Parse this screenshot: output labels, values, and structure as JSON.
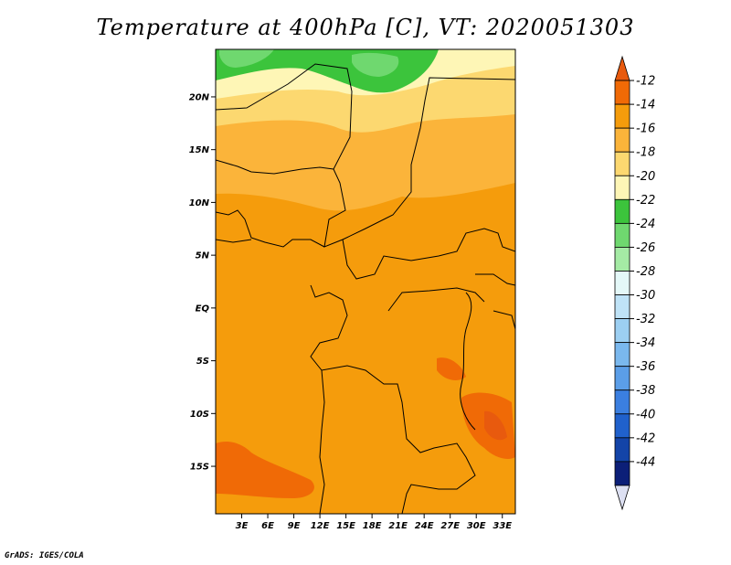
{
  "title": "Temperature at 400hPa [C], VT: 2020051303",
  "credit": "GrADS: IGES/COLA",
  "map": {
    "lat_range": [
      -19.5,
      24.5
    ],
    "lon_range": [
      0,
      34.5
    ],
    "lat_ticks": [
      "20N",
      "15N",
      "10N",
      "5N",
      "EQ",
      "5S",
      "10S",
      "15S"
    ],
    "lon_ticks": [
      "3E",
      "6E",
      "9E",
      "12E",
      "15E",
      "18E",
      "21E",
      "24E",
      "27E",
      "30E",
      "33E"
    ]
  },
  "colorbar": {
    "labels": [
      "-12",
      "-14",
      "-16",
      "-18",
      "-20",
      "-22",
      "-24",
      "-26",
      "-28",
      "-30",
      "-32",
      "-34",
      "-36",
      "-38",
      "-40",
      "-42",
      "-44"
    ],
    "colors": [
      "#e85a0e",
      "#f06a06",
      "#f59c0c",
      "#fbb43a",
      "#fcd870",
      "#fef6b6",
      "#3cc43c",
      "#6fd86f",
      "#a5eba5",
      "#e4f8f8",
      "#bfe3f7",
      "#9ccff2",
      "#7ab8ee",
      "#5b9ee8",
      "#3b7fe0",
      "#2061cc",
      "#1344a8",
      "#0c1f78",
      "#dde0f2"
    ]
  }
}
